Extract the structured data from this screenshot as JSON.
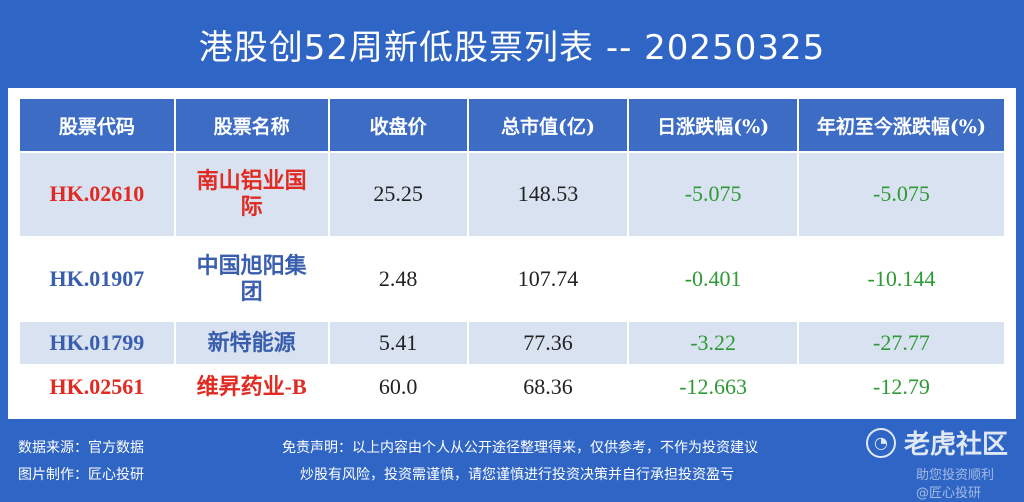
{
  "title": "港股创52周新低股票列表 -- 20250325",
  "table": {
    "headers": [
      "股票代码",
      "股票名称",
      "收盘价",
      "总市值(亿)",
      "日涨跌幅(%)",
      "年初至今涨跌幅(%)"
    ],
    "rows": [
      {
        "code": "HK.02610",
        "name": "南山铝业国际",
        "close": "25.25",
        "mcap": "148.53",
        "day": "-5.075",
        "ytd": "-5.075",
        "color": "#e02a22"
      },
      {
        "code": "HK.01907",
        "name": "中国旭阳集团",
        "close": "2.48",
        "mcap": "107.74",
        "day": "-0.401",
        "ytd": "-10.144",
        "color": "#3a5eae"
      },
      {
        "code": "HK.01799",
        "name": "新特能源",
        "close": "5.41",
        "mcap": "77.36",
        "day": "-3.22",
        "ytd": "-27.77",
        "color": "#3a5eae"
      },
      {
        "code": "HK.02561",
        "name": "维昇药业-B",
        "close": "60.0",
        "mcap": "68.36",
        "day": "-12.663",
        "ytd": "-12.79",
        "color": "#e02a22"
      }
    ]
  },
  "footer": {
    "source": "数据来源：官方数据",
    "maker": "图片制作：匠心投研",
    "disclaimer": "免责声明：以上内容由个人从公开途径整理得来，仅供参考，不作为投资建议",
    "risk": "炒股有风险，投资需谨慎，请您谨慎进行投资决策并自行承担投资盈亏"
  },
  "brand": {
    "name": "老虎社区",
    "icon": "tiger-logo-icon",
    "wm1": "助您投资顺利",
    "wm2": "@匠心投研"
  }
}
